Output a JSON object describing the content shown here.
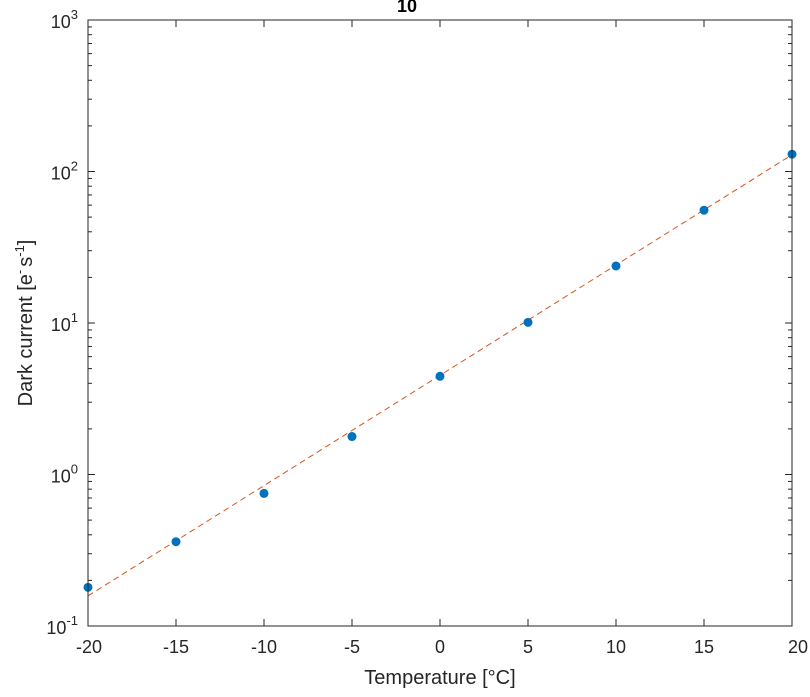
{
  "chart_data": {
    "type": "scatter",
    "title": "",
    "clipped_top_text": "10",
    "xlabel": "Temperature [°C]",
    "ylabel_parts": [
      "Dark current [e",
      "-",
      "s",
      "-1",
      "]"
    ],
    "xlim": [
      -20,
      20
    ],
    "ylim": [
      0.1,
      1000
    ],
    "yscale": "log",
    "grid": false,
    "x_ticks": [
      -20,
      -15,
      -10,
      -5,
      0,
      5,
      10,
      15,
      20
    ],
    "x_tick_labels": [
      "-20",
      "-15",
      "-10",
      "-5",
      "0",
      "5",
      "10",
      "15",
      "20"
    ],
    "y_ticks": [
      0.1,
      1,
      10,
      100,
      1000
    ],
    "y_tick_labels": [
      {
        "base": "10",
        "exp": "-1"
      },
      {
        "base": "10",
        "exp": "0"
      },
      {
        "base": "10",
        "exp": "1"
      },
      {
        "base": "10",
        "exp": "2"
      },
      {
        "base": "10",
        "exp": "3"
      }
    ],
    "series": [
      {
        "type": "scatter",
        "color": "#0072BD",
        "x": [
          -20,
          -15,
          -10,
          -5,
          0,
          5,
          10,
          15,
          20
        ],
        "y": [
          0.18,
          0.36,
          0.75,
          1.78,
          4.45,
          10.1,
          23.8,
          55.5,
          130
        ]
      },
      {
        "type": "line",
        "style": "dashed",
        "color": "#D95319",
        "x": [
          -20,
          20
        ],
        "y": [
          0.158,
          129
        ]
      }
    ]
  }
}
